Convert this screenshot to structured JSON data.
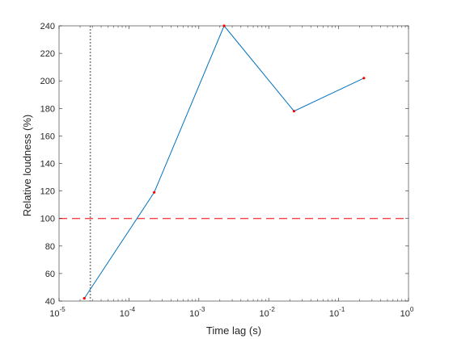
{
  "chart_data": {
    "type": "line",
    "xlabel": "Time lag (s)",
    "ylabel": "Relative loudness (%)",
    "xscale": "log",
    "xlim": [
      1e-05,
      1
    ],
    "ylim": [
      40,
      240
    ],
    "grid": false,
    "x_ticks": [
      {
        "value": 1e-05,
        "base": "10",
        "exp": "-5"
      },
      {
        "value": 0.0001,
        "base": "10",
        "exp": "-4"
      },
      {
        "value": 0.001,
        "base": "10",
        "exp": "-3"
      },
      {
        "value": 0.01,
        "base": "10",
        "exp": "-2"
      },
      {
        "value": 0.1,
        "base": "10",
        "exp": "-1"
      },
      {
        "value": 1,
        "base": "10",
        "exp": "0"
      }
    ],
    "y_ticks": [
      40,
      60,
      80,
      100,
      120,
      140,
      160,
      180,
      200,
      220,
      240
    ],
    "series": [
      {
        "x": [
          2.3e-05,
          0.00023,
          0.0023,
          0.023,
          0.23
        ],
        "y": [
          42,
          119,
          240,
          178,
          202
        ],
        "color": "#0072bd",
        "marker_color": "#ff0000"
      }
    ],
    "reference_lines": [
      {
        "orientation": "horizontal",
        "value": 100,
        "style": "dashed",
        "color": "#ff0000"
      },
      {
        "orientation": "vertical",
        "value": 2.8e-05,
        "style": "dotted",
        "color": "#808080"
      }
    ]
  }
}
